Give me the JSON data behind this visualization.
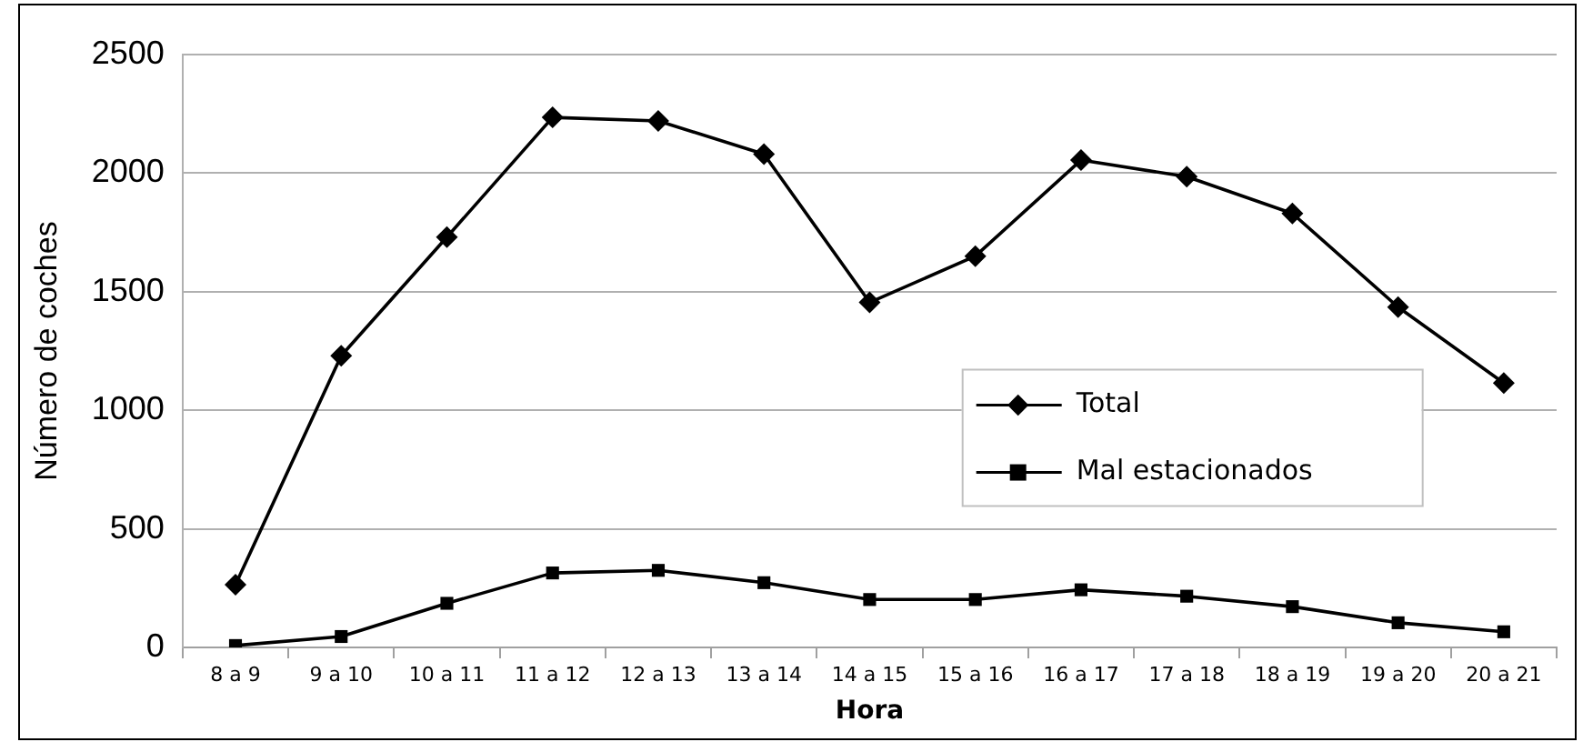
{
  "chart_data": {
    "type": "line",
    "xlabel": "Hora",
    "ylabel": "Número de coches",
    "categories": [
      "8 a 9",
      "9 a 10",
      "10 a 11",
      "11 a 12",
      "12 a 13",
      "13 a 14",
      "14 a 15",
      "15 a 16",
      "16 a 17",
      "17 a 18",
      "18 a 19",
      "19 a 20",
      "20 a 21"
    ],
    "series": [
      {
        "name": "Total",
        "color": "#000000",
        "marker": "diamond",
        "values": [
          265,
          1230,
          1730,
          2235,
          2220,
          2080,
          1455,
          1650,
          2055,
          1985,
          1830,
          1435,
          1115
        ]
      },
      {
        "name": "Mal estacionados",
        "color": "#000000",
        "marker": "square",
        "values": [
          8,
          46,
          186,
          314,
          325,
          273,
          202,
          202,
          243,
          216,
          172,
          104,
          66
        ]
      }
    ],
    "ylim": [
      0,
      2500
    ],
    "yticks": [
      0,
      500,
      1000,
      1500,
      2000,
      2500
    ],
    "grid": "y",
    "legend": "right",
    "line_style": "solid"
  }
}
